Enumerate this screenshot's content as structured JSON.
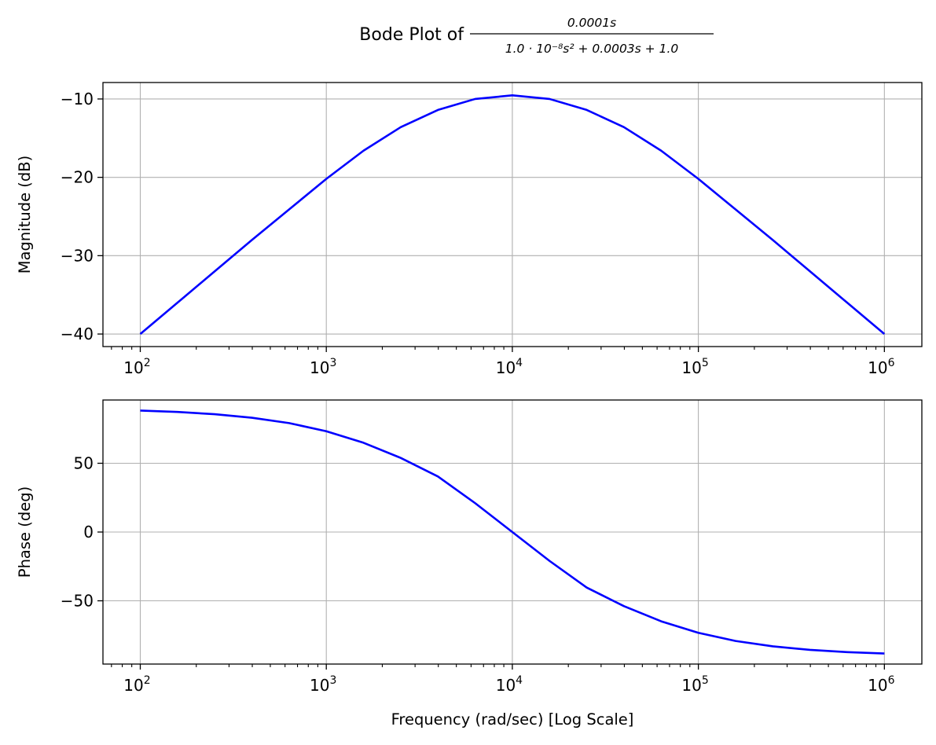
{
  "title": {
    "prefix": "Bode Plot of",
    "numerator": "0.0001s",
    "denominator": "1.0 · 10⁻⁸s² + 0.0003s + 1.0"
  },
  "colors": {
    "line": "#0000ff",
    "grid": "#b0b0b0",
    "axes": "#000000",
    "background": "#ffffff"
  },
  "chart_data": [
    {
      "type": "line",
      "panel": "magnitude",
      "ylabel": "Magnitude (dB)",
      "xlabel": "",
      "xscale": "log",
      "xlim": [
        63,
        1590000
      ],
      "ylim": [
        -41.6,
        -7.9
      ],
      "xticks": [
        100,
        1000,
        10000,
        100000,
        1000000
      ],
      "xtick_labels": [
        {
          "base": "10",
          "exp": "2"
        },
        {
          "base": "10",
          "exp": "3"
        },
        {
          "base": "10",
          "exp": "4"
        },
        {
          "base": "10",
          "exp": "5"
        },
        {
          "base": "10",
          "exp": "6"
        }
      ],
      "yticks": [
        -40,
        -30,
        -20,
        -10
      ],
      "ytick_labels": [
        "−40",
        "−30",
        "−20",
        "−10"
      ],
      "grid": true,
      "series": [
        {
          "x": [
            100,
            158.5,
            251.2,
            398.1,
            631,
            1000,
            1585,
            2512,
            3981,
            6310,
            10000,
            15850,
            25120,
            39810,
            63100,
            100000,
            158500,
            251200,
            398100,
            631000,
            1000000
          ],
          "y": [
            -40.0,
            -36.0,
            -32.0,
            -28.0,
            -24.1,
            -20.2,
            -16.6,
            -13.6,
            -11.4,
            -10.0,
            -9.54,
            -10.0,
            -11.4,
            -13.6,
            -16.6,
            -20.2,
            -24.1,
            -28.0,
            -32.0,
            -36.0,
            -40.0
          ]
        }
      ]
    },
    {
      "type": "line",
      "panel": "phase",
      "ylabel": "Phase (deg)",
      "xlabel": "Frequency (rad/sec) [Log Scale]",
      "xscale": "log",
      "xlim": [
        63,
        1590000
      ],
      "ylim": [
        -96,
        96
      ],
      "xticks": [
        100,
        1000,
        10000,
        100000,
        1000000
      ],
      "xtick_labels": [
        {
          "base": "10",
          "exp": "2"
        },
        {
          "base": "10",
          "exp": "3"
        },
        {
          "base": "10",
          "exp": "4"
        },
        {
          "base": "10",
          "exp": "5"
        },
        {
          "base": "10",
          "exp": "6"
        }
      ],
      "yticks": [
        -50,
        0,
        50
      ],
      "ytick_labels": [
        "−50",
        "0",
        "50"
      ],
      "grid": true,
      "series": [
        {
          "x": [
            100,
            158.5,
            251.2,
            398.1,
            631,
            1000,
            1585,
            2512,
            3981,
            6310,
            10000,
            15850,
            25120,
            39810,
            63100,
            100000,
            158500,
            251200,
            398100,
            631000,
            1000000
          ],
          "y": [
            88.3,
            87.3,
            85.7,
            83.1,
            79.2,
            73.3,
            64.9,
            53.9,
            40.4,
            21.0,
            0.0,
            -21.0,
            -40.4,
            -53.9,
            -64.9,
            -73.3,
            -79.2,
            -83.1,
            -85.7,
            -87.3,
            -88.3
          ]
        }
      ]
    }
  ]
}
